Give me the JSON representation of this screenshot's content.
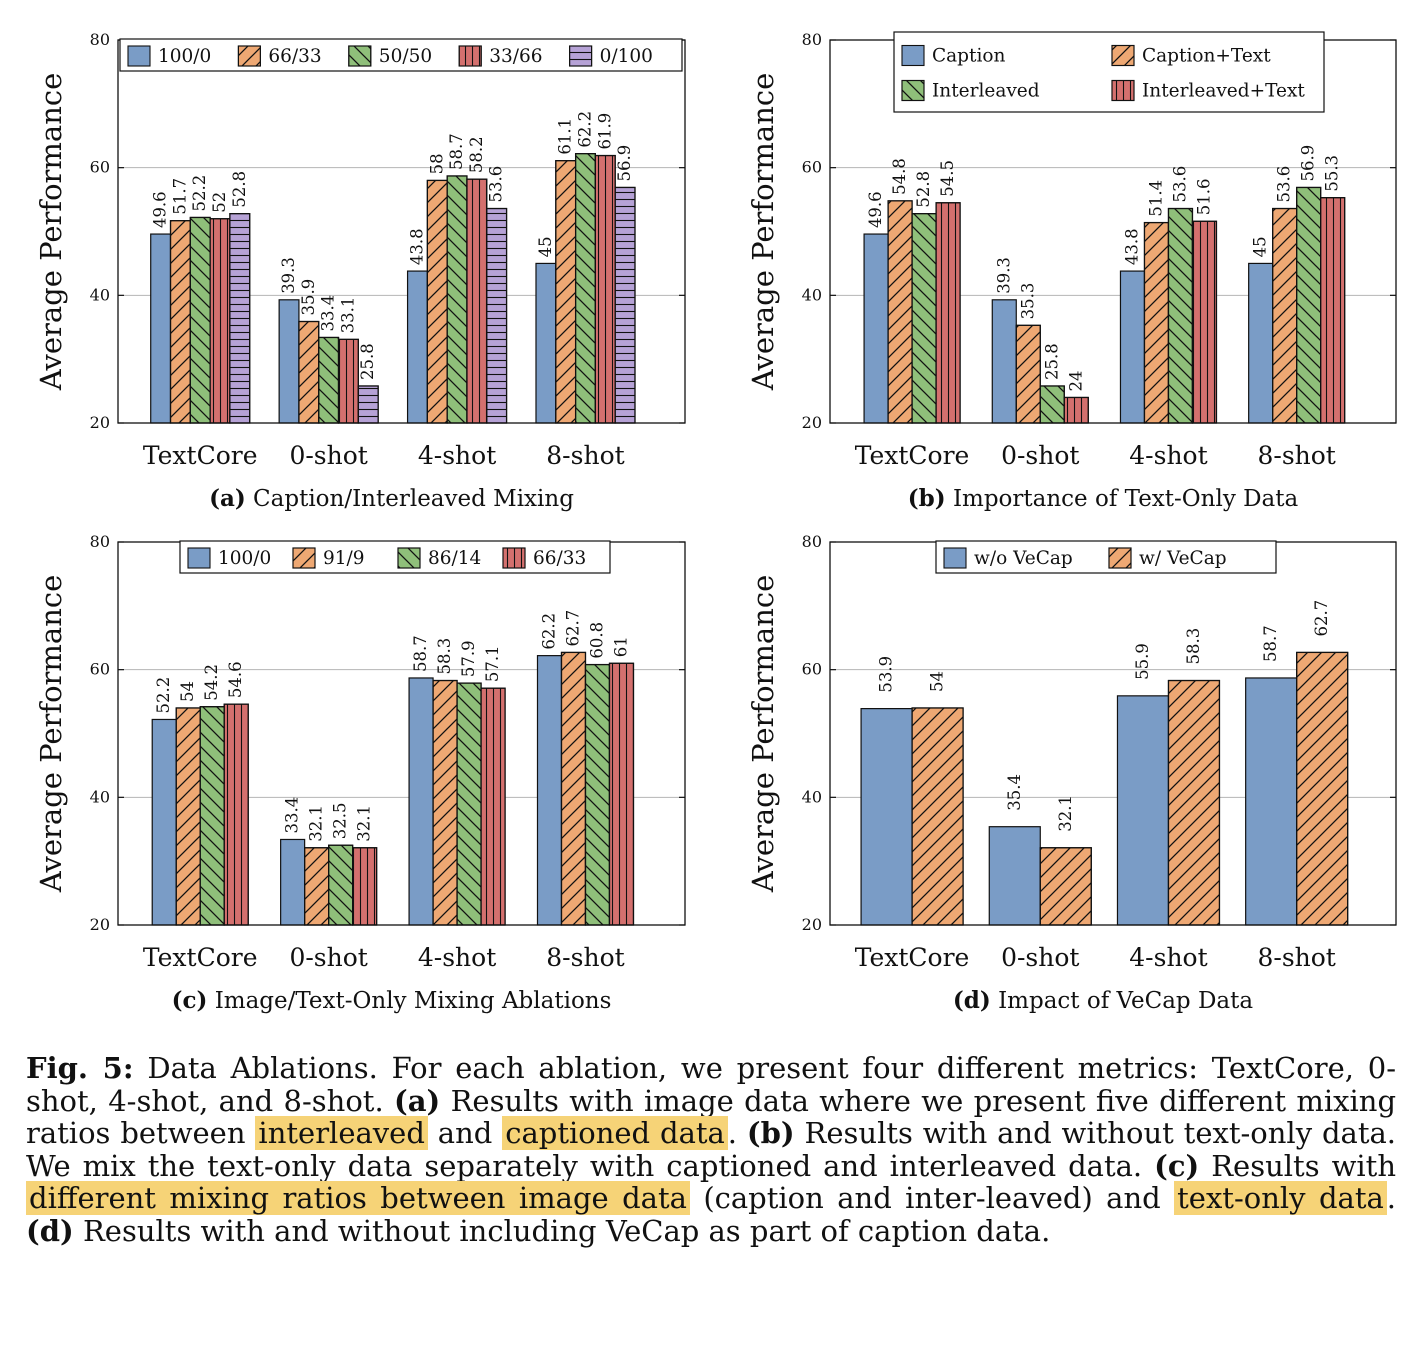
{
  "chart_data": [
    {
      "type": "bar",
      "panel": "(a)",
      "caption": "Caption/Interleaved Mixing",
      "ylabel": "Average Performance",
      "ylim": [
        20,
        80
      ],
      "yticks": [
        20,
        40,
        60,
        80
      ],
      "grid": true,
      "legend_placement": "top",
      "categories": [
        "TextCore",
        "0-shot",
        "4-shot",
        "8-shot"
      ],
      "series": [
        {
          "name": "100/0",
          "values": [
            49.6,
            39.3,
            43.8,
            45
          ],
          "color": "#7a9cc6",
          "hatch": "none"
        },
        {
          "name": "66/33",
          "values": [
            51.7,
            35.9,
            58,
            61.1
          ],
          "color": "#eea873",
          "hatch": "diag-right"
        },
        {
          "name": "50/50",
          "values": [
            52.2,
            33.4,
            58.7,
            62.2
          ],
          "color": "#8fbf7a",
          "hatch": "diag-left"
        },
        {
          "name": "33/66",
          "values": [
            52,
            33.1,
            58.2,
            61.9
          ],
          "color": "#d4706e",
          "hatch": "vertical"
        },
        {
          "name": "0/100",
          "values": [
            52.8,
            25.8,
            53.6,
            56.9
          ],
          "color": "#b6a2d6",
          "hatch": "horizontal"
        }
      ]
    },
    {
      "type": "bar",
      "panel": "(b)",
      "caption": "Importance of Text-Only Data",
      "ylabel": "Average Performance",
      "ylim": [
        20,
        80
      ],
      "yticks": [
        20,
        40,
        60,
        80
      ],
      "grid": true,
      "legend_placement": "top",
      "categories": [
        "TextCore",
        "0-shot",
        "4-shot",
        "8-shot"
      ],
      "series": [
        {
          "name": "Caption",
          "values": [
            49.6,
            39.3,
            43.8,
            45
          ],
          "color": "#7a9cc6",
          "hatch": "none"
        },
        {
          "name": "Caption+Text",
          "values": [
            54.8,
            35.3,
            51.4,
            53.6
          ],
          "color": "#eea873",
          "hatch": "diag-right"
        },
        {
          "name": "Interleaved",
          "values": [
            52.8,
            25.8,
            53.6,
            56.9
          ],
          "color": "#8fbf7a",
          "hatch": "diag-left"
        },
        {
          "name": "Interleaved+Text",
          "values": [
            54.5,
            24,
            51.6,
            55.3
          ],
          "color": "#d4706e",
          "hatch": "vertical"
        }
      ]
    },
    {
      "type": "bar",
      "panel": "(c)",
      "caption": "Image/Text-Only Mixing Ablations",
      "ylabel": "Average Performance",
      "ylim": [
        20,
        80
      ],
      "yticks": [
        20,
        40,
        60,
        80
      ],
      "grid": true,
      "legend_placement": "top",
      "categories": [
        "TextCore",
        "0-shot",
        "4-shot",
        "8-shot"
      ],
      "series": [
        {
          "name": "100/0",
          "values": [
            52.2,
            33.4,
            58.7,
            62.2
          ],
          "color": "#7a9cc6",
          "hatch": "none"
        },
        {
          "name": "91/9",
          "values": [
            54,
            32.1,
            58.3,
            62.7
          ],
          "color": "#eea873",
          "hatch": "diag-right"
        },
        {
          "name": "86/14",
          "values": [
            54.2,
            32.5,
            57.9,
            60.8
          ],
          "color": "#8fbf7a",
          "hatch": "diag-left"
        },
        {
          "name": "66/33",
          "values": [
            54.6,
            32.1,
            57.1,
            61
          ],
          "color": "#d4706e",
          "hatch": "vertical"
        }
      ]
    },
    {
      "type": "bar",
      "panel": "(d)",
      "caption": "Impact of VeCap Data",
      "ylabel": "Average Performance",
      "ylim": [
        20,
        80
      ],
      "yticks": [
        20,
        40,
        60,
        80
      ],
      "grid": true,
      "legend_placement": "top",
      "categories": [
        "TextCore",
        "0-shot",
        "4-shot",
        "8-shot"
      ],
      "series": [
        {
          "name": "w/o VeCap",
          "values": [
            53.9,
            35.4,
            55.9,
            58.7
          ],
          "color": "#7a9cc6",
          "hatch": "none"
        },
        {
          "name": "w/ VeCap",
          "values": [
            54,
            32.1,
            58.3,
            62.7
          ],
          "color": "#eea873",
          "hatch": "diag-right"
        }
      ]
    }
  ],
  "figure_caption": {
    "label": "Fig. 5:",
    "segments": [
      {
        "text": " Data Ablations. For each ablation, we present four different metrics: TextCore, 0-shot, 4-shot, and 8-shot. ",
        "style": "plain"
      },
      {
        "text": "(a)",
        "style": "bold"
      },
      {
        "text": " Results with image data where we present five different mixing ratios between ",
        "style": "plain"
      },
      {
        "text": "interleaved",
        "style": "highlight"
      },
      {
        "text": " and ",
        "style": "plain"
      },
      {
        "text": "captioned data",
        "style": "highlight"
      },
      {
        "text": ". ",
        "style": "plain"
      },
      {
        "text": "(b)",
        "style": "bold"
      },
      {
        "text": " Results with and without text-only data. We mix the text-only data separately with captioned and interleaved data. ",
        "style": "plain"
      },
      {
        "text": "(c)",
        "style": "bold"
      },
      {
        "text": " Results with ",
        "style": "plain"
      },
      {
        "text": "different mixing ratios between image data",
        "style": "highlight"
      },
      {
        "text": " (caption and inter-leaved) and ",
        "style": "plain"
      },
      {
        "text": "text-only data",
        "style": "highlight"
      },
      {
        "text": ". ",
        "style": "plain"
      },
      {
        "text": "(d)",
        "style": "bold"
      },
      {
        "text": " Results with and without including VeCap as part of caption data.",
        "style": "plain"
      }
    ]
  }
}
